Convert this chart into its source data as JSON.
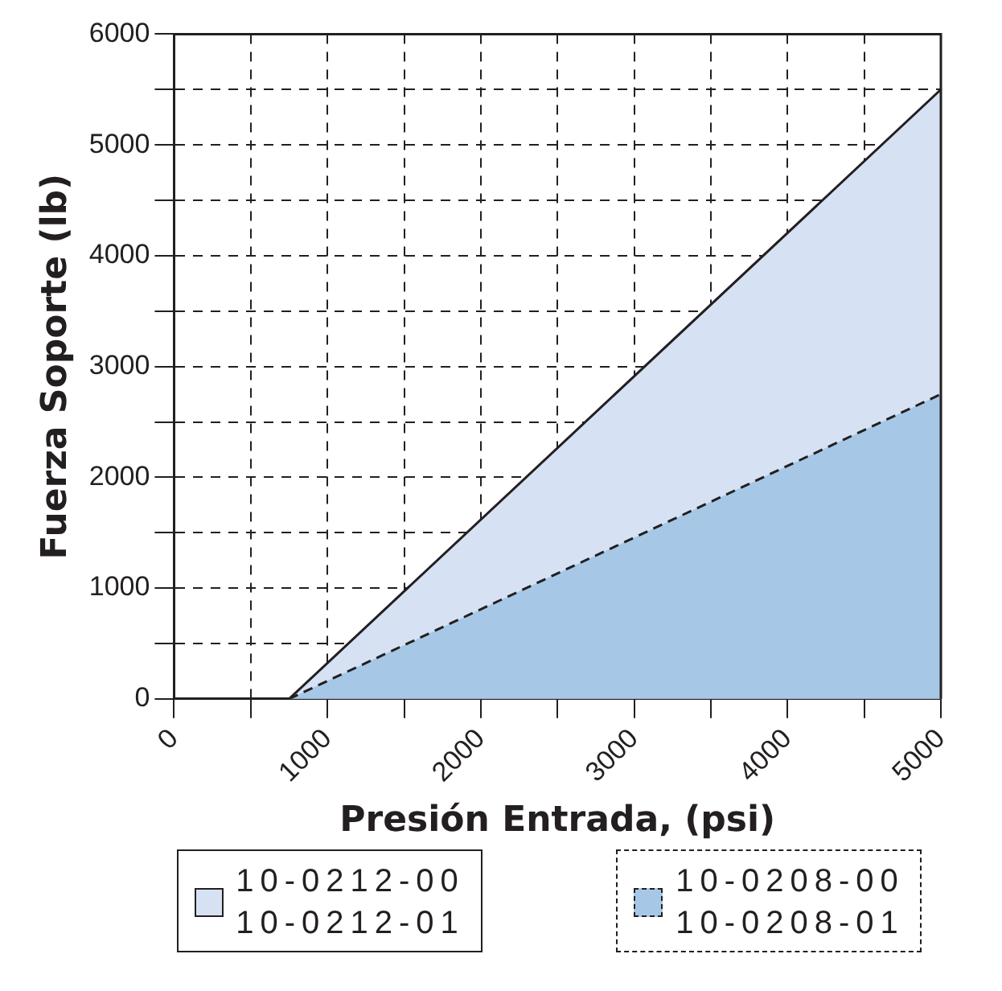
{
  "chart_data": {
    "type": "area",
    "xlabel": "Presión Entrada, (psi)",
    "ylabel": "Fuerza Soporte (lb)",
    "series": [
      {
        "name": "10-0212-00\n10-0212-01",
        "color": "#d6e2f3",
        "x": [
          0,
          750,
          5000
        ],
        "values": [
          0,
          0,
          5500
        ],
        "line_style": "solid"
      },
      {
        "name": "10-0208-00\n10-0208-01",
        "color": "#a6c8e6",
        "x": [
          750,
          5000
        ],
        "values": [
          0,
          2750
        ],
        "line_style": "dashed"
      }
    ],
    "xlim": [
      0,
      5000
    ],
    "xticks": [
      0,
      {
        "value": 500,
        "label": null
      },
      1000,
      {
        "value": 1500,
        "label": null
      },
      2000,
      {
        "value": 2500,
        "label": null
      },
      3000,
      {
        "value": 3500,
        "label": null
      },
      4000,
      {
        "value": 4500,
        "label": null
      },
      5000
    ],
    "ylim": [
      0,
      6000
    ],
    "yticks": [
      0,
      {
        "value": 500,
        "label": null
      },
      1000,
      {
        "value": 1500,
        "label": null
      },
      2000,
      {
        "value": 2500,
        "label": null
      },
      3000,
      {
        "value": 3500,
        "label": null
      },
      4000,
      {
        "value": 4500,
        "label": null
      },
      5000,
      {
        "value": 5500,
        "label": null
      },
      6000
    ],
    "grid": true,
    "legend": "bottom",
    "marker": "none"
  }
}
